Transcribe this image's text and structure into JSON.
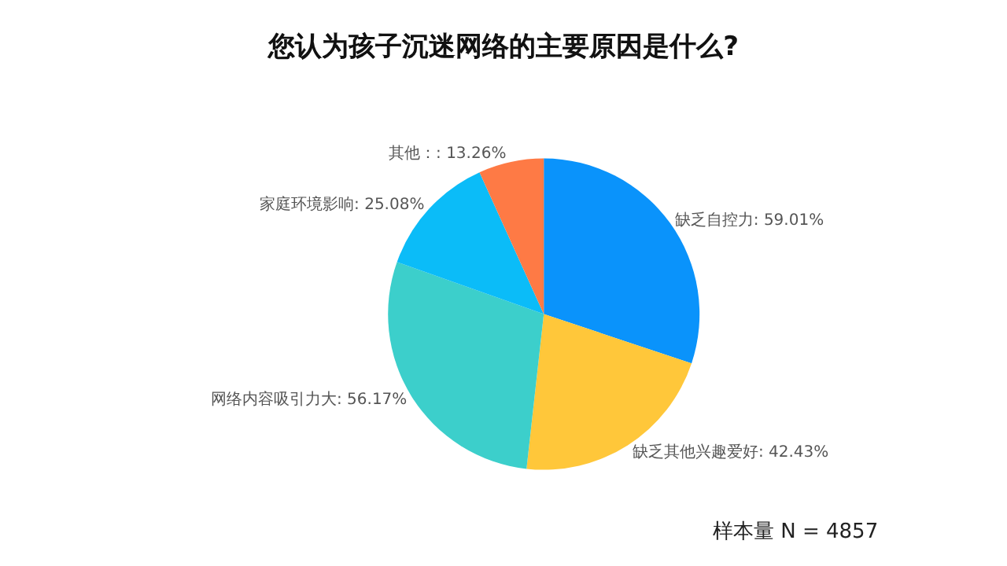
{
  "chart_data": {
    "type": "pie",
    "title": "您认为孩子沉迷网络的主要原因是什么?",
    "categories": [
      "缺乏自控力",
      "缺乏其他兴趣爱好",
      "网络内容吸引力大",
      "家庭环境影响",
      "其他"
    ],
    "values": [
      59.01,
      42.43,
      56.17,
      25.08,
      13.26
    ],
    "value_labels": [
      ": 59.01%",
      ": 42.43%",
      ": 56.17%",
      ": 25.08%",
      "：: 13.26%"
    ],
    "colors": [
      "#0a93fb",
      "#ffc73a",
      "#3ccfcb",
      "#0bbcf8",
      "#fe7a45"
    ],
    "legend": false,
    "annotations": [
      "样本量 N = 4857"
    ]
  }
}
